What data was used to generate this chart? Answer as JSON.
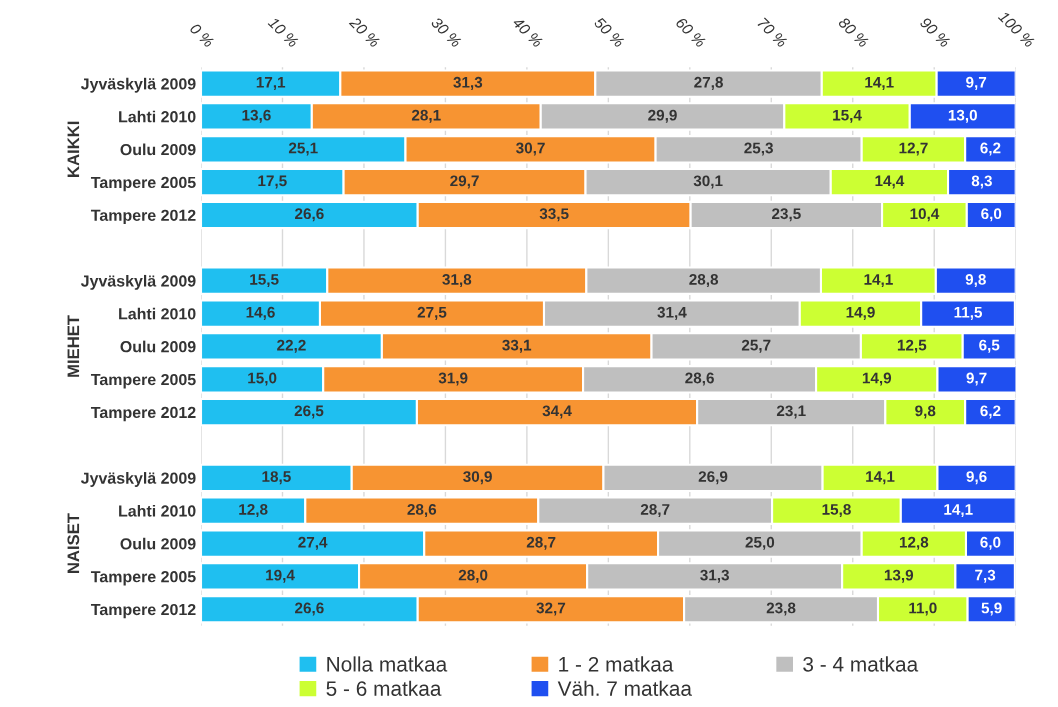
{
  "chart_data": {
    "type": "bar",
    "orientation": "horizontal",
    "stacked": true,
    "categories": [
      "Jyväskylä 2009",
      "Lahti 2010",
      "Oulu 2009",
      "Tampere 2005",
      "Tampere 2012",
      null,
      "Jyväskylä 2009",
      "Lahti 2010",
      "Oulu 2009",
      "Tampere 2005",
      "Tampere 2012",
      null,
      "Jyväskylä 2009",
      "Lahti 2010",
      "Oulu 2009",
      "Tampere 2005",
      "Tampere 2012"
    ],
    "series": [
      {
        "name": "Nolla matkaa",
        "color": "#1fbff0",
        "values": [
          17.1,
          13.6,
          25.1,
          17.5,
          26.6,
          null,
          15.5,
          14.6,
          22.2,
          15.0,
          26.5,
          null,
          18.5,
          12.8,
          27.4,
          19.4,
          26.6
        ],
        "value_labels": [
          "17,1",
          "13,6",
          "25,1",
          "17,5",
          "26,6",
          null,
          "15,5",
          "14,6",
          "22,2",
          "15,0",
          "26,5",
          null,
          "18,5",
          "12,8",
          "27,4",
          "19,4",
          "26,6"
        ]
      },
      {
        "name": "1 - 2 matkaa",
        "color": "#f79432",
        "values": [
          31.3,
          28.1,
          30.7,
          29.7,
          33.5,
          null,
          31.8,
          27.5,
          33.1,
          31.9,
          34.4,
          null,
          30.9,
          28.6,
          28.7,
          28.0,
          32.7
        ],
        "value_labels": [
          "31,3",
          "28,1",
          "30,7",
          "29,7",
          "33,5",
          null,
          "31,8",
          "27,5",
          "33,1",
          "31,9",
          "34,4",
          null,
          "30,9",
          "28,6",
          "28,7",
          "28,0",
          "32,7"
        ]
      },
      {
        "name": "3 - 4 matkaa",
        "color": "#bfbfbf",
        "values": [
          27.8,
          29.9,
          25.3,
          30.1,
          23.5,
          null,
          28.8,
          31.4,
          25.7,
          28.6,
          23.1,
          null,
          26.9,
          28.7,
          25.0,
          31.3,
          23.8
        ],
        "value_labels": [
          "27,8",
          "29,9",
          "25,3",
          "30,1",
          "23,5",
          null,
          "28,8",
          "31,4",
          "25,7",
          "28,6",
          "23,1",
          null,
          "26,9",
          "28,7",
          "25,0",
          "31,3",
          "23,8"
        ]
      },
      {
        "name": "5 - 6 matkaa",
        "color": "#ccff33",
        "values": [
          14.1,
          15.4,
          12.7,
          14.4,
          10.4,
          null,
          14.1,
          14.9,
          12.5,
          14.9,
          9.8,
          null,
          14.1,
          15.8,
          12.8,
          13.9,
          11.0
        ],
        "value_labels": [
          "14,1",
          "15,4",
          "12,7",
          "14,4",
          "10,4",
          null,
          "14,1",
          "14,9",
          "12,5",
          "14,9",
          "9,8",
          null,
          "14,1",
          "15,8",
          "12,8",
          "13,9",
          "11,0"
        ]
      },
      {
        "name": "Väh. 7 matkaa",
        "color": "#1f4ff0",
        "values": [
          9.7,
          13.0,
          6.2,
          8.3,
          6.0,
          null,
          9.8,
          11.5,
          6.5,
          9.7,
          6.2,
          null,
          9.6,
          14.1,
          6.0,
          7.3,
          5.9
        ],
        "value_labels": [
          "9,7",
          "13,0",
          "6,2",
          "8,3",
          "6,0",
          null,
          "9,8",
          "11,5",
          "6,5",
          "9,7",
          "6,2",
          null,
          "9,6",
          "14,1",
          "6,0",
          "7,3",
          "5,9"
        ]
      }
    ],
    "xlim": [
      0,
      100
    ],
    "xticks": [
      {
        "value": 0,
        "label": "0 %"
      },
      {
        "value": 10,
        "label": "10 %"
      },
      {
        "value": 20,
        "label": "20 %"
      },
      {
        "value": 30,
        "label": "30 %"
      },
      {
        "value": 40,
        "label": "40 %"
      },
      {
        "value": 50,
        "label": "50 %"
      },
      {
        "value": 60,
        "label": "60 %"
      },
      {
        "value": 70,
        "label": "70 %"
      },
      {
        "value": 80,
        "label": "80 %"
      },
      {
        "value": 90,
        "label": "90 %"
      },
      {
        "value": 100,
        "label": "100 %"
      }
    ],
    "annotations": [
      "KAIKKI",
      "MIEHET",
      "NAISET"
    ],
    "grid": "x",
    "legend": "bottom"
  }
}
